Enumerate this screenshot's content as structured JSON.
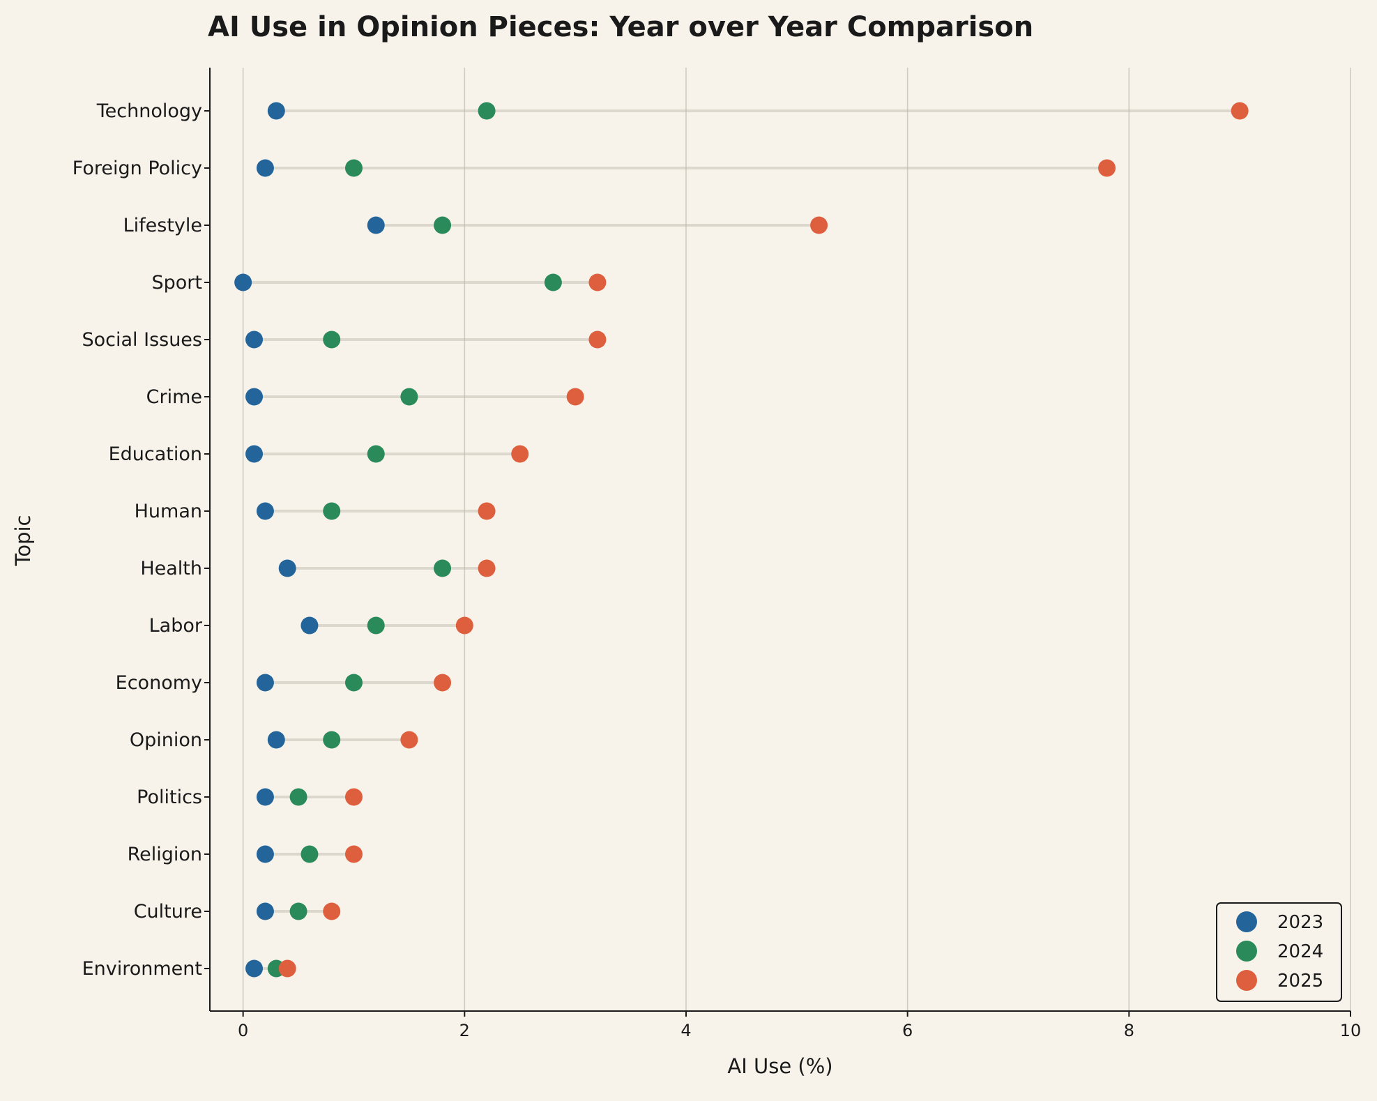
{
  "chart_data": {
    "type": "dot",
    "title": "AI Use in Opinion Pieces: Year over Year Comparison",
    "xlabel": "AI Use (%)",
    "ylabel": "Topic",
    "xlim": [
      -0.3,
      10
    ],
    "xticks": [
      0,
      2,
      4,
      6,
      8,
      10
    ],
    "grid": "vertical",
    "legend_position": "bottom-right",
    "categories": [
      "Technology",
      "Foreign Policy",
      "Lifestyle",
      "Sport",
      "Social Issues",
      "Crime",
      "Education",
      "Human",
      "Health",
      "Labor",
      "Economy",
      "Opinion",
      "Politics",
      "Religion",
      "Culture",
      "Environment"
    ],
    "series": [
      {
        "name": "2023",
        "color": "#23659a",
        "values": [
          0.3,
          0.2,
          1.2,
          0.0,
          0.1,
          0.1,
          0.1,
          0.2,
          0.4,
          0.6,
          0.2,
          0.3,
          0.2,
          0.2,
          0.2,
          0.1
        ]
      },
      {
        "name": "2024",
        "color": "#2a8a5a",
        "values": [
          2.2,
          1.0,
          1.8,
          2.8,
          0.8,
          1.5,
          1.2,
          0.8,
          1.8,
          1.2,
          1.0,
          0.8,
          0.5,
          0.6,
          0.5,
          0.3
        ]
      },
      {
        "name": "2025",
        "color": "#de5f3e",
        "values": [
          9.0,
          7.8,
          5.2,
          3.2,
          3.2,
          3.0,
          2.5,
          2.2,
          2.2,
          2.0,
          1.8,
          1.5,
          1.0,
          1.0,
          0.8,
          0.4
        ]
      }
    ]
  }
}
